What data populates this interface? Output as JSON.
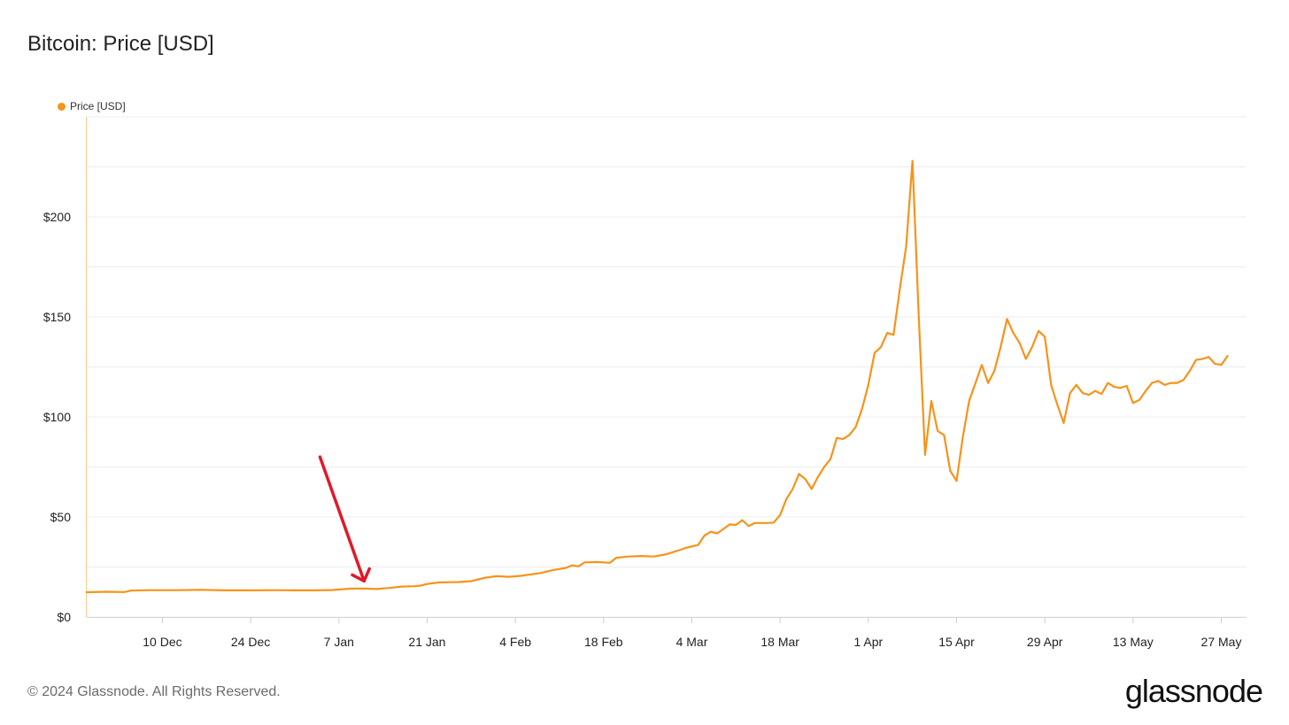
{
  "header": {
    "title": "Bitcoin: Price [USD]"
  },
  "footer": {
    "copyright": "© 2024 Glassnode. All Rights Reserved.",
    "brand": "glassnode"
  },
  "colors": {
    "series": "#f7931a",
    "grid": "#ececec",
    "annotation": "#e0192b"
  },
  "chart_data": {
    "type": "line",
    "title": "Bitcoin: Price [USD]",
    "legend": {
      "position": "top-left",
      "entries": [
        "Price [USD]"
      ]
    },
    "grid": true,
    "ylim": [
      0,
      250
    ],
    "yticks": [
      {
        "value": 0,
        "label": "$0"
      },
      {
        "value": 50,
        "label": "$50"
      },
      {
        "value": 100,
        "label": "$100"
      },
      {
        "value": 150,
        "label": "$150"
      },
      {
        "value": 200,
        "label": "$200"
      }
    ],
    "xlim": [
      "2012-11-28",
      "2013-05-31"
    ],
    "xticks": [
      {
        "date": "2012-12-10",
        "label": "10 Dec"
      },
      {
        "date": "2012-12-24",
        "label": "24 Dec"
      },
      {
        "date": "2013-01-07",
        "label": "7 Jan"
      },
      {
        "date": "2013-01-21",
        "label": "21 Jan"
      },
      {
        "date": "2013-02-04",
        "label": "4 Feb"
      },
      {
        "date": "2013-02-18",
        "label": "18 Feb"
      },
      {
        "date": "2013-03-04",
        "label": "4 Mar"
      },
      {
        "date": "2013-03-18",
        "label": "18 Mar"
      },
      {
        "date": "2013-04-01",
        "label": "1 Apr"
      },
      {
        "date": "2013-04-15",
        "label": "15 Apr"
      },
      {
        "date": "2013-04-29",
        "label": "29 Apr"
      },
      {
        "date": "2013-05-13",
        "label": "13 May"
      },
      {
        "date": "2013-05-27",
        "label": "27 May"
      }
    ],
    "series": [
      {
        "name": "Price [USD]",
        "color": "#f7931a",
        "points": [
          [
            "2012-11-28",
            12.4
          ],
          [
            "2012-12-01",
            12.6
          ],
          [
            "2012-12-04",
            12.5
          ],
          [
            "2012-12-05",
            13.2
          ],
          [
            "2012-12-08",
            13.4
          ],
          [
            "2012-12-12",
            13.4
          ],
          [
            "2012-12-16",
            13.6
          ],
          [
            "2012-12-20",
            13.3
          ],
          [
            "2012-12-24",
            13.3
          ],
          [
            "2012-12-28",
            13.4
          ],
          [
            "2012-12-31",
            13.3
          ],
          [
            "2013-01-03",
            13.3
          ],
          [
            "2013-01-06",
            13.5
          ],
          [
            "2013-01-09",
            14.2
          ],
          [
            "2013-01-11",
            14.2
          ],
          [
            "2013-01-13",
            14.0
          ],
          [
            "2013-01-15",
            14.5
          ],
          [
            "2013-01-17",
            15.2
          ],
          [
            "2013-01-19",
            15.4
          ],
          [
            "2013-01-20",
            15.7
          ],
          [
            "2013-01-21",
            16.5
          ],
          [
            "2013-01-23",
            17.3
          ],
          [
            "2013-01-26",
            17.5
          ],
          [
            "2013-01-28",
            17.9
          ],
          [
            "2013-01-30",
            19.5
          ],
          [
            "2013-02-01",
            20.4
          ],
          [
            "2013-02-03",
            20.1
          ],
          [
            "2013-02-05",
            20.6
          ],
          [
            "2013-02-08",
            22.0
          ],
          [
            "2013-02-10",
            23.5
          ],
          [
            "2013-02-12",
            24.5
          ],
          [
            "2013-02-13",
            25.8
          ],
          [
            "2013-02-14",
            25.3
          ],
          [
            "2013-02-15",
            27.3
          ],
          [
            "2013-02-17",
            27.5
          ],
          [
            "2013-02-19",
            27.1
          ],
          [
            "2013-02-20",
            29.6
          ],
          [
            "2013-02-22",
            30.2
          ],
          [
            "2013-02-24",
            30.5
          ],
          [
            "2013-02-26",
            30.2
          ],
          [
            "2013-02-28",
            31.4
          ],
          [
            "2013-03-02",
            33.4
          ],
          [
            "2013-03-03",
            34.5
          ],
          [
            "2013-03-05",
            36.0
          ],
          [
            "2013-03-06",
            40.7
          ],
          [
            "2013-03-07",
            42.6
          ],
          [
            "2013-03-08",
            41.8
          ],
          [
            "2013-03-09",
            44.0
          ],
          [
            "2013-03-10",
            46.3
          ],
          [
            "2013-03-11",
            46.0
          ],
          [
            "2013-03-12",
            48.4
          ],
          [
            "2013-03-13",
            45.5
          ],
          [
            "2013-03-14",
            47.0
          ],
          [
            "2013-03-16",
            47.0
          ],
          [
            "2013-03-17",
            47.2
          ],
          [
            "2013-03-18",
            51.0
          ],
          [
            "2013-03-19",
            59.0
          ],
          [
            "2013-03-20",
            64.0
          ],
          [
            "2013-03-21",
            71.5
          ],
          [
            "2013-03-22",
            69.0
          ],
          [
            "2013-03-23",
            64.0
          ],
          [
            "2013-03-24",
            70.0
          ],
          [
            "2013-03-25",
            75.0
          ],
          [
            "2013-03-26",
            79.0
          ],
          [
            "2013-03-27",
            89.5
          ],
          [
            "2013-03-28",
            89.0
          ],
          [
            "2013-03-29",
            91.0
          ],
          [
            "2013-03-30",
            95.0
          ],
          [
            "2013-03-31",
            104.0
          ],
          [
            "2013-04-01",
            116.0
          ],
          [
            "2013-04-02",
            132.0
          ],
          [
            "2013-04-03",
            135.0
          ],
          [
            "2013-04-04",
            142.0
          ],
          [
            "2013-04-05",
            141.0
          ],
          [
            "2013-04-06",
            164.0
          ],
          [
            "2013-04-07",
            185.0
          ],
          [
            "2013-04-08",
            228.0
          ],
          [
            "2013-04-09",
            150.0
          ],
          [
            "2013-04-10",
            81.0
          ],
          [
            "2013-04-11",
            108.0
          ],
          [
            "2013-04-12",
            93.0
          ],
          [
            "2013-04-13",
            91.0
          ],
          [
            "2013-04-14",
            73.0
          ],
          [
            "2013-04-15",
            68.0
          ],
          [
            "2013-04-16",
            90.0
          ],
          [
            "2013-04-17",
            108.0
          ],
          [
            "2013-04-18",
            117.0
          ],
          [
            "2013-04-19",
            126.0
          ],
          [
            "2013-04-20",
            117.0
          ],
          [
            "2013-04-21",
            123.0
          ],
          [
            "2013-04-22",
            135.0
          ],
          [
            "2013-04-23",
            149.0
          ],
          [
            "2013-04-24",
            142.0
          ],
          [
            "2013-04-25",
            137.0
          ],
          [
            "2013-04-26",
            129.0
          ],
          [
            "2013-04-27",
            135.0
          ],
          [
            "2013-04-28",
            143.0
          ],
          [
            "2013-04-29",
            140.0
          ],
          [
            "2013-04-30",
            116.0
          ],
          [
            "2013-05-01",
            106.0
          ],
          [
            "2013-05-02",
            97.0
          ],
          [
            "2013-05-03",
            112.0
          ],
          [
            "2013-05-04",
            116.0
          ],
          [
            "2013-05-05",
            112.0
          ],
          [
            "2013-05-06",
            111.0
          ],
          [
            "2013-05-07",
            113.0
          ],
          [
            "2013-05-08",
            111.5
          ],
          [
            "2013-05-09",
            117.0
          ],
          [
            "2013-05-10",
            115.0
          ],
          [
            "2013-05-11",
            114.5
          ],
          [
            "2013-05-12",
            115.5
          ],
          [
            "2013-05-13",
            107.0
          ],
          [
            "2013-05-14",
            108.5
          ],
          [
            "2013-05-15",
            113.0
          ],
          [
            "2013-05-16",
            117.0
          ],
          [
            "2013-05-17",
            118.0
          ],
          [
            "2013-05-18",
            116.0
          ],
          [
            "2013-05-19",
            117.0
          ],
          [
            "2013-05-20",
            117.0
          ],
          [
            "2013-05-21",
            118.5
          ],
          [
            "2013-05-22",
            123.0
          ],
          [
            "2013-05-23",
            128.5
          ],
          [
            "2013-05-24",
            129.0
          ],
          [
            "2013-05-25",
            130.0
          ],
          [
            "2013-05-26",
            126.5
          ],
          [
            "2013-05-27",
            126.0
          ],
          [
            "2013-05-28",
            130.5
          ]
        ]
      }
    ],
    "annotations": [
      {
        "type": "arrow",
        "color": "#e0192b",
        "from": [
          "2013-01-04",
          80
        ],
        "to": [
          "2013-01-11",
          18
        ]
      }
    ]
  }
}
